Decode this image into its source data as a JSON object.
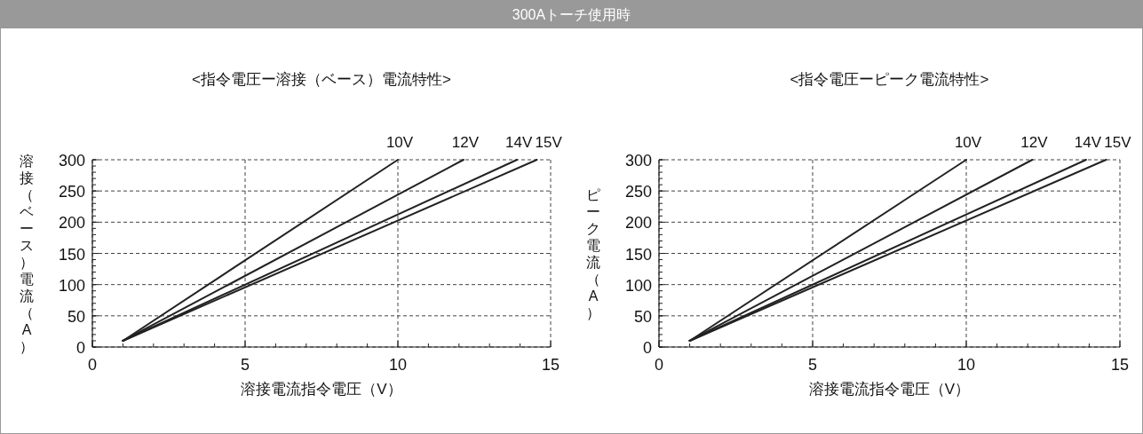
{
  "chart_data": [
    {
      "type": "line",
      "title": "300Aトーチ使用時",
      "subtitle": "<指令電圧ー溶接（ベース）電流特性>",
      "xlabel": "溶接電流指令電圧（V）",
      "ylabel": "溶接（ベース）電流（A）",
      "xlim": [
        0,
        15
      ],
      "xticks": [
        0,
        5,
        10,
        15
      ],
      "ylim": [
        0,
        300
      ],
      "yticks": [
        0,
        50,
        100,
        150,
        200,
        250,
        300
      ],
      "grid": true,
      "line_style": "solid",
      "marker": "none",
      "series": [
        {
          "name": "10V",
          "color": "#222222",
          "x": [
            1,
            10
          ],
          "values": [
            10,
            300
          ]
        },
        {
          "name": "12V",
          "color": "#222222",
          "x": [
            1,
            12.15
          ],
          "values": [
            10,
            300
          ]
        },
        {
          "name": "14V",
          "color": "#222222",
          "x": [
            1,
            13.9
          ],
          "values": [
            10,
            300
          ]
        },
        {
          "name": "15V",
          "color": "#222222",
          "x": [
            1,
            14.55
          ],
          "values": [
            10,
            300
          ]
        }
      ]
    },
    {
      "type": "line",
      "subtitle": "<指令電圧ーピーク電流特性>",
      "xlabel": "溶接電流指令電圧（V）",
      "ylabel": "ピーク電流（A）",
      "xlim": [
        0,
        15
      ],
      "xticks": [
        0,
        5,
        10,
        15
      ],
      "ylim": [
        0,
        300
      ],
      "yticks": [
        0,
        50,
        100,
        150,
        200,
        250,
        300
      ],
      "grid": true,
      "line_style": "solid",
      "marker": "none",
      "series": [
        {
          "name": "10V",
          "color": "#222222",
          "x": [
            1,
            10
          ],
          "values": [
            10,
            300
          ]
        },
        {
          "name": "12V",
          "color": "#222222",
          "x": [
            1,
            12.15
          ],
          "values": [
            10,
            300
          ]
        },
        {
          "name": "14V",
          "color": "#222222",
          "x": [
            1,
            13.9
          ],
          "values": [
            10,
            300
          ]
        },
        {
          "name": "15V",
          "color": "#222222",
          "x": [
            1,
            14.55
          ],
          "values": [
            10,
            300
          ]
        }
      ]
    }
  ]
}
